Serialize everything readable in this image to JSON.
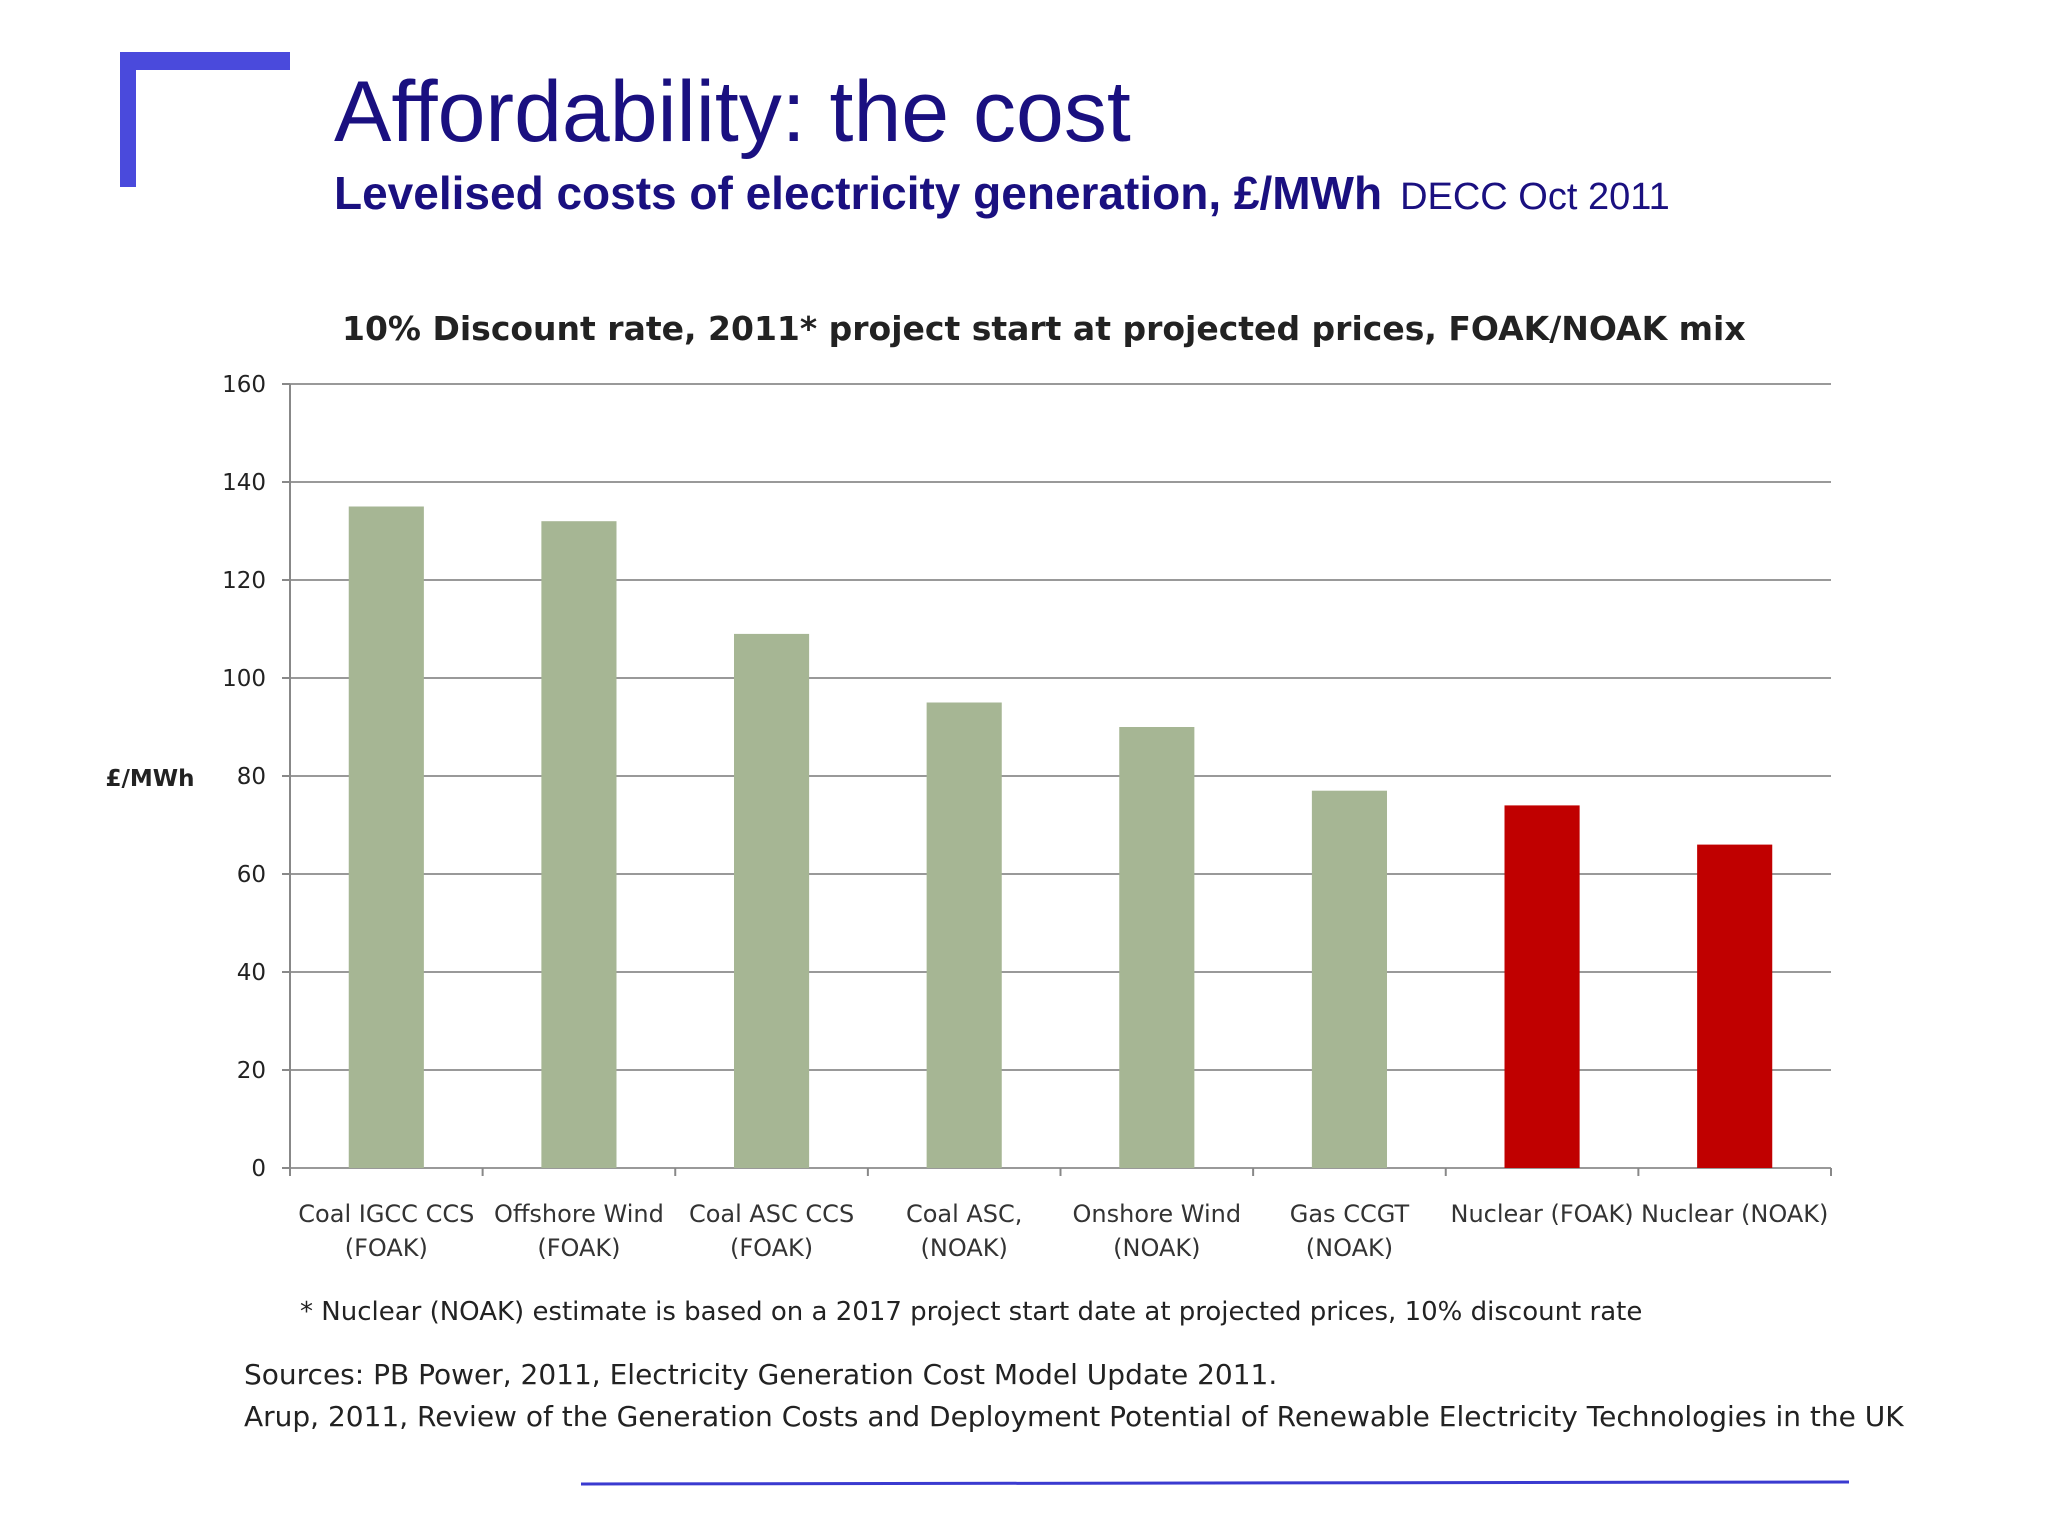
{
  "slide": {
    "title": "Affordability: the cost",
    "subtitle": "Levelised costs of electricity generation, £/MWh",
    "source_note": "DECC Oct 2011",
    "sources": [
      "Sources: PB Power, 2011, Electricity Generation Cost Model Update 2011.",
      "Arup, 2011, Review of the Generation Costs and Deployment Potential of Renewable Electricity Technologies in the UK"
    ]
  },
  "chart_data": {
    "type": "bar",
    "title": "10% Discount rate, 2011* project start at projected prices, FOAK/NOAK mix",
    "y_label": "£/MWh",
    "categories": [
      [
        "Coal IGCC CCS",
        "(FOAK)"
      ],
      [
        "Offshore Wind",
        "(FOAK)"
      ],
      [
        "Coal ASC CCS",
        "(FOAK)"
      ],
      [
        "Coal ASC,",
        "(NOAK)"
      ],
      [
        "Onshore Wind",
        "(NOAK)"
      ],
      [
        "Gas CCGT",
        "(NOAK)"
      ],
      [
        "Nuclear (FOAK)"
      ],
      [
        "Nuclear (NOAK)"
      ]
    ],
    "values": [
      135,
      132,
      109,
      95,
      90,
      77,
      74,
      66
    ],
    "colors": [
      "#a6b694",
      "#a6b694",
      "#a6b694",
      "#a6b694",
      "#a6b694",
      "#a6b694",
      "#c00000",
      "#c00000"
    ],
    "ylim": [
      0,
      160
    ],
    "yticks": [
      0,
      20,
      40,
      60,
      80,
      100,
      120,
      140,
      160
    ],
    "grid": true,
    "footnote": "* Nuclear (NOAK) estimate is based on a 2017 project start date at projected prices, 10% discount rate"
  }
}
